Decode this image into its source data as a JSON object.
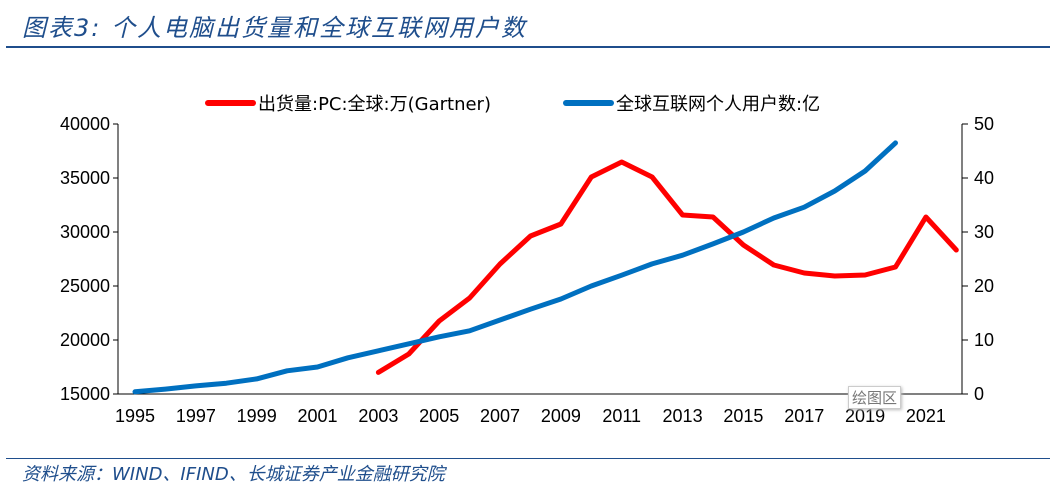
{
  "title": "图表3:  个人电脑出货量和全球互联网用户数",
  "source": "资料来源：WIND、IFIND、长城证券产业金融研究院",
  "tooltip": "绘图区",
  "chart_data": {
    "type": "line",
    "x": [
      1995,
      1996,
      1997,
      1998,
      1999,
      2000,
      2001,
      2002,
      2003,
      2004,
      2005,
      2006,
      2007,
      2008,
      2009,
      2010,
      2011,
      2012,
      2013,
      2014,
      2015,
      2016,
      2017,
      2018,
      2019,
      2020,
      2021,
      2022
    ],
    "x_tick_labels": [
      "1995",
      "1997",
      "1999",
      "2001",
      "2003",
      "2005",
      "2007",
      "2009",
      "2011",
      "2013",
      "2015",
      "2017",
      "2019",
      "2021"
    ],
    "y_left": {
      "ylim": [
        15000,
        40000
      ],
      "ticks": [
        "15000",
        "20000",
        "25000",
        "30000",
        "35000",
        "40000"
      ]
    },
    "y_right": {
      "ylim": [
        0,
        50
      ],
      "ticks": [
        "0",
        "10",
        "20",
        "30",
        "40",
        "50"
      ]
    },
    "grid": false,
    "legend_position": "top",
    "series": [
      {
        "name": "出货量:PC:全球:万(Gartner)",
        "axis": "left",
        "color": "#ff0000",
        "values": [
          null,
          null,
          null,
          null,
          null,
          null,
          null,
          null,
          17000,
          18700,
          21760,
          23890,
          27040,
          29630,
          30740,
          35090,
          36480,
          35090,
          31570,
          31390,
          28800,
          26940,
          26200,
          25930,
          26020,
          26760,
          31390,
          28330
        ]
      },
      {
        "name": "全球互联网个人用户数:亿",
        "axis": "right",
        "color": "#0070c0",
        "values": [
          0.4,
          0.9,
          1.5,
          2.0,
          2.8,
          4.3,
          5.0,
          6.7,
          8.0,
          9.3,
          10.6,
          11.7,
          13.7,
          15.7,
          17.6,
          20.0,
          22.0,
          24.1,
          25.7,
          27.8,
          30.0,
          32.6,
          34.6,
          37.6,
          41.3,
          46.5,
          null,
          null
        ]
      }
    ]
  }
}
